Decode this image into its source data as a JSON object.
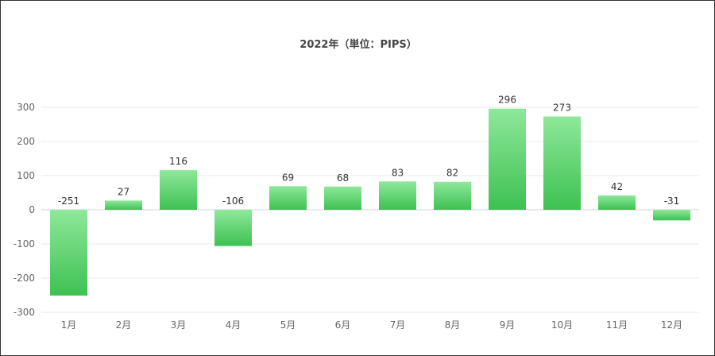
{
  "chart_data": {
    "type": "bar",
    "title": "2022年（単位：PIPS）",
    "categories": [
      "1月",
      "2月",
      "3月",
      "4月",
      "5月",
      "6月",
      "7月",
      "8月",
      "9月",
      "10月",
      "11月",
      "12月"
    ],
    "values": [
      -251,
      27,
      116,
      -106,
      69,
      68,
      83,
      82,
      296,
      273,
      42,
      -31
    ],
    "ylim": [
      -300,
      300
    ],
    "yticks": [
      300,
      200,
      100,
      0,
      -100,
      -200,
      -300
    ],
    "xlabel": "",
    "ylabel": "",
    "grid": true,
    "bar_color_top": "#8ee89a",
    "bar_color_bottom": "#3ec152"
  }
}
